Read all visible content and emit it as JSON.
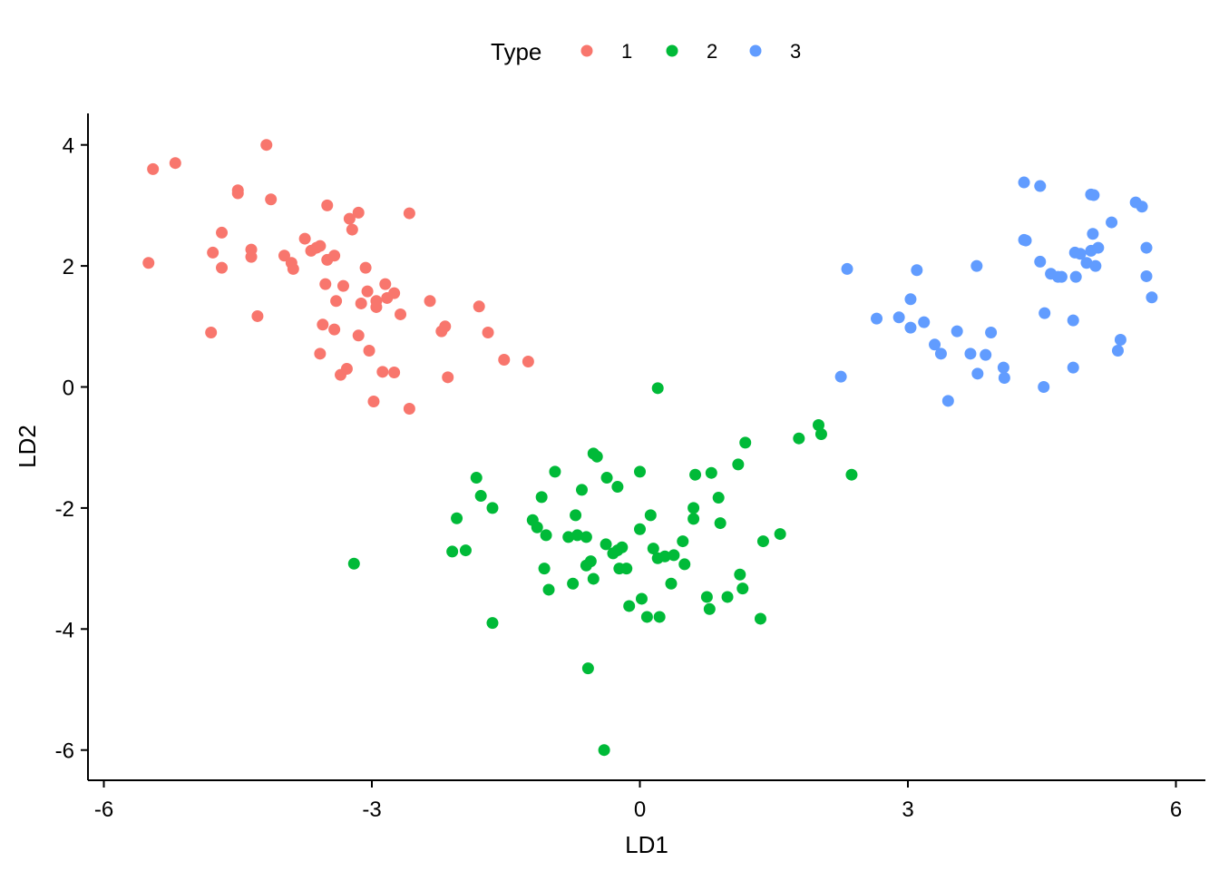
{
  "chart_data": {
    "type": "scatter",
    "title": "",
    "xlabel": "LD1",
    "ylabel": "LD2",
    "xlim": [
      -6.2,
      6.3
    ],
    "ylim": [
      -6.5,
      4.5
    ],
    "xticks": [
      -6,
      -3,
      0,
      3,
      6
    ],
    "yticks": [
      4,
      2,
      0,
      -2,
      -4,
      -6
    ],
    "xtick_labels": [
      "-6",
      "-3",
      "0",
      "3",
      "6"
    ],
    "ytick_labels": [
      "4",
      "2",
      "0",
      "-2",
      "-4",
      "-6"
    ],
    "grid": false,
    "legend": {
      "title": "Type",
      "position": "top"
    },
    "series": [
      {
        "name": "1",
        "color": "#F8766D",
        "points": [
          [
            -5.5,
            2.05
          ],
          [
            -5.45,
            3.6
          ],
          [
            -5.2,
            3.7
          ],
          [
            -4.8,
            0.9
          ],
          [
            -4.78,
            2.22
          ],
          [
            -4.68,
            2.55
          ],
          [
            -4.68,
            1.97
          ],
          [
            -4.5,
            3.25
          ],
          [
            -4.5,
            3.2
          ],
          [
            -4.35,
            2.27
          ],
          [
            -4.35,
            2.15
          ],
          [
            -4.28,
            1.17
          ],
          [
            -4.18,
            4.0
          ],
          [
            -4.13,
            3.1
          ],
          [
            -3.98,
            2.17
          ],
          [
            -3.9,
            2.05
          ],
          [
            -3.88,
            1.95
          ],
          [
            -3.75,
            2.45
          ],
          [
            -3.68,
            2.25
          ],
          [
            -3.62,
            2.3
          ],
          [
            -3.58,
            2.33
          ],
          [
            -3.58,
            0.55
          ],
          [
            -3.55,
            1.03
          ],
          [
            -3.52,
            1.7
          ],
          [
            -3.5,
            3.0
          ],
          [
            -3.5,
            2.1
          ],
          [
            -3.42,
            0.95
          ],
          [
            -3.42,
            2.17
          ],
          [
            -3.4,
            1.42
          ],
          [
            -3.35,
            0.2
          ],
          [
            -3.32,
            1.67
          ],
          [
            -3.28,
            0.3
          ],
          [
            -3.25,
            2.78
          ],
          [
            -3.22,
            2.6
          ],
          [
            -3.15,
            0.85
          ],
          [
            -3.15,
            2.88
          ],
          [
            -3.12,
            1.38
          ],
          [
            -3.07,
            1.97
          ],
          [
            -3.05,
            1.58
          ],
          [
            -3.03,
            0.6
          ],
          [
            -2.98,
            -0.24
          ],
          [
            -2.95,
            1.42
          ],
          [
            -2.95,
            1.32
          ],
          [
            -2.88,
            0.25
          ],
          [
            -2.85,
            1.7
          ],
          [
            -2.83,
            1.47
          ],
          [
            -2.75,
            1.55
          ],
          [
            -2.75,
            0.24
          ],
          [
            -2.68,
            1.2
          ],
          [
            -2.58,
            2.87
          ],
          [
            -2.58,
            -0.36
          ],
          [
            -2.35,
            1.42
          ],
          [
            -2.22,
            0.92
          ],
          [
            -2.18,
            1.0
          ],
          [
            -2.15,
            0.16
          ],
          [
            -1.8,
            1.33
          ],
          [
            -1.7,
            0.9
          ],
          [
            -1.52,
            0.45
          ],
          [
            -1.25,
            0.42
          ]
        ]
      },
      {
        "name": "2",
        "color": "#00BA38",
        "points": [
          [
            -3.2,
            -2.92
          ],
          [
            -1.95,
            -2.7
          ],
          [
            -2.1,
            -2.72
          ],
          [
            -2.05,
            -2.17
          ],
          [
            -1.83,
            -1.5
          ],
          [
            -1.78,
            -1.8
          ],
          [
            -1.65,
            -2.0
          ],
          [
            -1.65,
            -3.9
          ],
          [
            -1.2,
            -2.2
          ],
          [
            -1.15,
            -2.32
          ],
          [
            -1.1,
            -1.82
          ],
          [
            -1.07,
            -3.0
          ],
          [
            -1.05,
            -2.45
          ],
          [
            -1.02,
            -3.35
          ],
          [
            -0.95,
            -1.4
          ],
          [
            -0.8,
            -2.48
          ],
          [
            -0.75,
            -3.25
          ],
          [
            -0.72,
            -2.12
          ],
          [
            -0.7,
            -2.45
          ],
          [
            -0.65,
            -1.7
          ],
          [
            -0.6,
            -2.48
          ],
          [
            -0.6,
            -2.95
          ],
          [
            -0.58,
            -4.65
          ],
          [
            -0.55,
            -2.88
          ],
          [
            -0.52,
            -3.17
          ],
          [
            -0.52,
            -1.1
          ],
          [
            -0.48,
            -1.15
          ],
          [
            -0.4,
            -6.0
          ],
          [
            -0.38,
            -2.6
          ],
          [
            -0.37,
            -1.5
          ],
          [
            -0.3,
            -2.75
          ],
          [
            -0.25,
            -1.65
          ],
          [
            -0.25,
            -2.7
          ],
          [
            -0.23,
            -3.0
          ],
          [
            -0.2,
            -2.65
          ],
          [
            -0.15,
            -3.0
          ],
          [
            -0.12,
            -3.62
          ],
          [
            0.0,
            -2.35
          ],
          [
            0.0,
            -1.4
          ],
          [
            0.02,
            -3.5
          ],
          [
            0.08,
            -3.8
          ],
          [
            0.12,
            -2.12
          ],
          [
            0.15,
            -2.67
          ],
          [
            0.2,
            -2.83
          ],
          [
            0.2,
            -0.02
          ],
          [
            0.22,
            -3.8
          ],
          [
            0.28,
            -2.8
          ],
          [
            0.35,
            -3.25
          ],
          [
            0.38,
            -2.78
          ],
          [
            0.48,
            -2.55
          ],
          [
            0.5,
            -2.93
          ],
          [
            0.6,
            -2.0
          ],
          [
            0.6,
            -2.18
          ],
          [
            0.62,
            -1.45
          ],
          [
            0.75,
            -3.47
          ],
          [
            0.78,
            -3.67
          ],
          [
            0.8,
            -1.42
          ],
          [
            0.88,
            -1.83
          ],
          [
            0.9,
            -2.25
          ],
          [
            0.98,
            -3.47
          ],
          [
            1.1,
            -1.28
          ],
          [
            1.12,
            -3.1
          ],
          [
            1.15,
            -3.33
          ],
          [
            1.18,
            -0.92
          ],
          [
            1.35,
            -3.83
          ],
          [
            1.38,
            -2.55
          ],
          [
            1.57,
            -2.43
          ],
          [
            1.78,
            -0.85
          ],
          [
            2.0,
            -0.63
          ],
          [
            2.03,
            -0.78
          ],
          [
            2.37,
            -1.45
          ]
        ]
      },
      {
        "name": "3",
        "color": "#619CFF",
        "points": [
          [
            2.25,
            0.17
          ],
          [
            2.32,
            1.95
          ],
          [
            2.65,
            1.13
          ],
          [
            2.9,
            1.15
          ],
          [
            3.03,
            1.45
          ],
          [
            3.03,
            0.98
          ],
          [
            3.1,
            1.93
          ],
          [
            3.18,
            1.07
          ],
          [
            3.3,
            0.7
          ],
          [
            3.37,
            0.55
          ],
          [
            3.45,
            -0.23
          ],
          [
            3.55,
            0.92
          ],
          [
            3.7,
            0.55
          ],
          [
            3.77,
            2.0
          ],
          [
            3.78,
            0.22
          ],
          [
            3.87,
            0.53
          ],
          [
            3.93,
            0.9
          ],
          [
            4.07,
            0.32
          ],
          [
            4.08,
            0.15
          ],
          [
            4.3,
            2.43
          ],
          [
            4.32,
            2.42
          ],
          [
            4.3,
            3.38
          ],
          [
            4.48,
            3.32
          ],
          [
            4.48,
            2.07
          ],
          [
            4.52,
            0.0
          ],
          [
            4.53,
            1.22
          ],
          [
            4.6,
            1.87
          ],
          [
            4.68,
            1.82
          ],
          [
            4.72,
            1.82
          ],
          [
            4.85,
            1.1
          ],
          [
            4.85,
            0.32
          ],
          [
            4.87,
            2.22
          ],
          [
            4.88,
            1.82
          ],
          [
            4.93,
            2.2
          ],
          [
            5.0,
            2.05
          ],
          [
            5.05,
            2.25
          ],
          [
            5.05,
            3.18
          ],
          [
            5.07,
            2.53
          ],
          [
            5.08,
            3.17
          ],
          [
            5.1,
            2.0
          ],
          [
            5.13,
            2.3
          ],
          [
            5.28,
            2.72
          ],
          [
            5.35,
            0.6
          ],
          [
            5.38,
            0.78
          ],
          [
            5.55,
            3.05
          ],
          [
            5.62,
            2.98
          ],
          [
            5.67,
            2.3
          ],
          [
            5.67,
            1.83
          ],
          [
            5.73,
            1.48
          ]
        ]
      }
    ]
  }
}
